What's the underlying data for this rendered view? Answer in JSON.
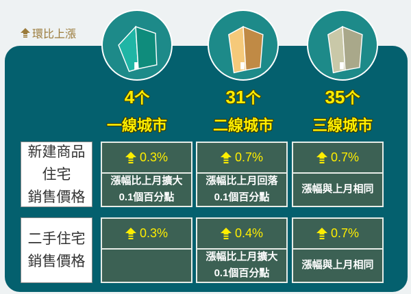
{
  "legend": {
    "icon": "up-arrow-icon",
    "label": "環比上漲",
    "color": "#9a7a3a"
  },
  "colors": {
    "panel": "#04606e",
    "cell": "#3c6154",
    "highlight": "#ffee00"
  },
  "tiers": [
    {
      "count": "4",
      "unit": "个",
      "label": "一線城市",
      "building_color": "#1fb5a5"
    },
    {
      "count": "31",
      "unit": "个",
      "label": "二線城市",
      "building_color": "#f5c97a"
    },
    {
      "count": "35",
      "unit": "个",
      "label": "三線城市",
      "building_color": "#c9c8a8"
    }
  ],
  "rows": [
    {
      "label_lines": [
        "新建商品",
        "住宅",
        "銷售價格"
      ],
      "cells": [
        {
          "value": "0.3%",
          "note": [
            "漲幅比上月擴大",
            "0.1個百分點"
          ]
        },
        {
          "value": "0.7%",
          "note": [
            "漲幅比上月回落",
            "0.1個百分點"
          ]
        },
        {
          "value": "0.7%",
          "note": [
            "漲幅與上月相同"
          ]
        }
      ]
    },
    {
      "label_lines": [
        "二手住宅",
        "銷售價格"
      ],
      "cells": [
        {
          "value": "0.3%",
          "note": []
        },
        {
          "value": "0.4%",
          "note": [
            "漲幅比上月擴大",
            "0.1個百分點"
          ]
        },
        {
          "value": "0.7%",
          "note": [
            "漲幅與上月相同"
          ]
        }
      ]
    }
  ]
}
